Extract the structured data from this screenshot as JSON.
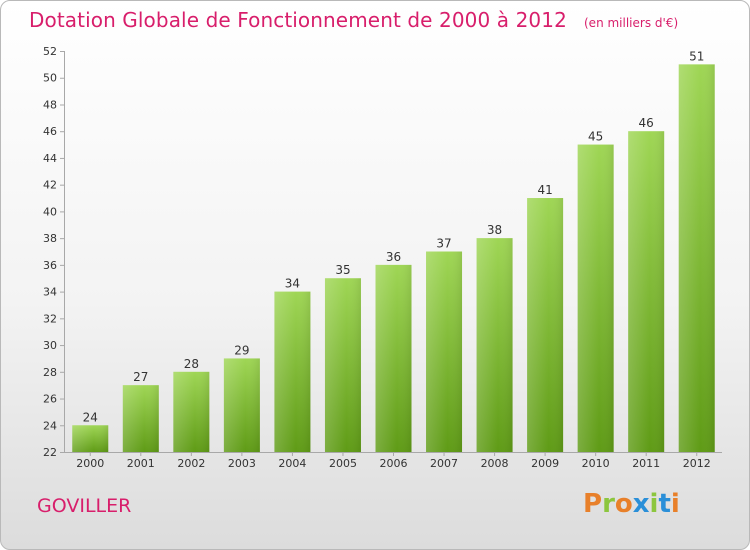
{
  "header": {
    "title": "Dotation Globale de Fonctionnement de 2000 à 2012",
    "unit": "(en milliers d'€)"
  },
  "footer": {
    "town": "GOVILLER",
    "logo": "Proxiti"
  },
  "colors": {
    "accent": "#d81e6b",
    "bar_top": "#9fd655",
    "bar_bottom": "#5f9b16",
    "logo_letters": [
      "#e8802a",
      "#8cc63e",
      "#e8802a",
      "#2a8fd8",
      "#8cc63e",
      "#2a8fd8",
      "#e8802a"
    ]
  },
  "chart_data": {
    "type": "bar",
    "title": "Dotation Globale de Fonctionnement de 2000 à 2012",
    "subtitle": "(en milliers d'€)",
    "categories": [
      "2000",
      "2001",
      "2002",
      "2003",
      "2004",
      "2005",
      "2006",
      "2007",
      "2008",
      "2009",
      "2010",
      "2011",
      "2012"
    ],
    "values": [
      24,
      27,
      28,
      29,
      34,
      35,
      36,
      37,
      38,
      41,
      45,
      46,
      51
    ],
    "ylim": [
      22,
      52
    ],
    "yticks": [
      22,
      24,
      26,
      28,
      30,
      32,
      34,
      36,
      38,
      40,
      42,
      44,
      46,
      48,
      50,
      52
    ],
    "grid": false,
    "data_labels": true
  }
}
